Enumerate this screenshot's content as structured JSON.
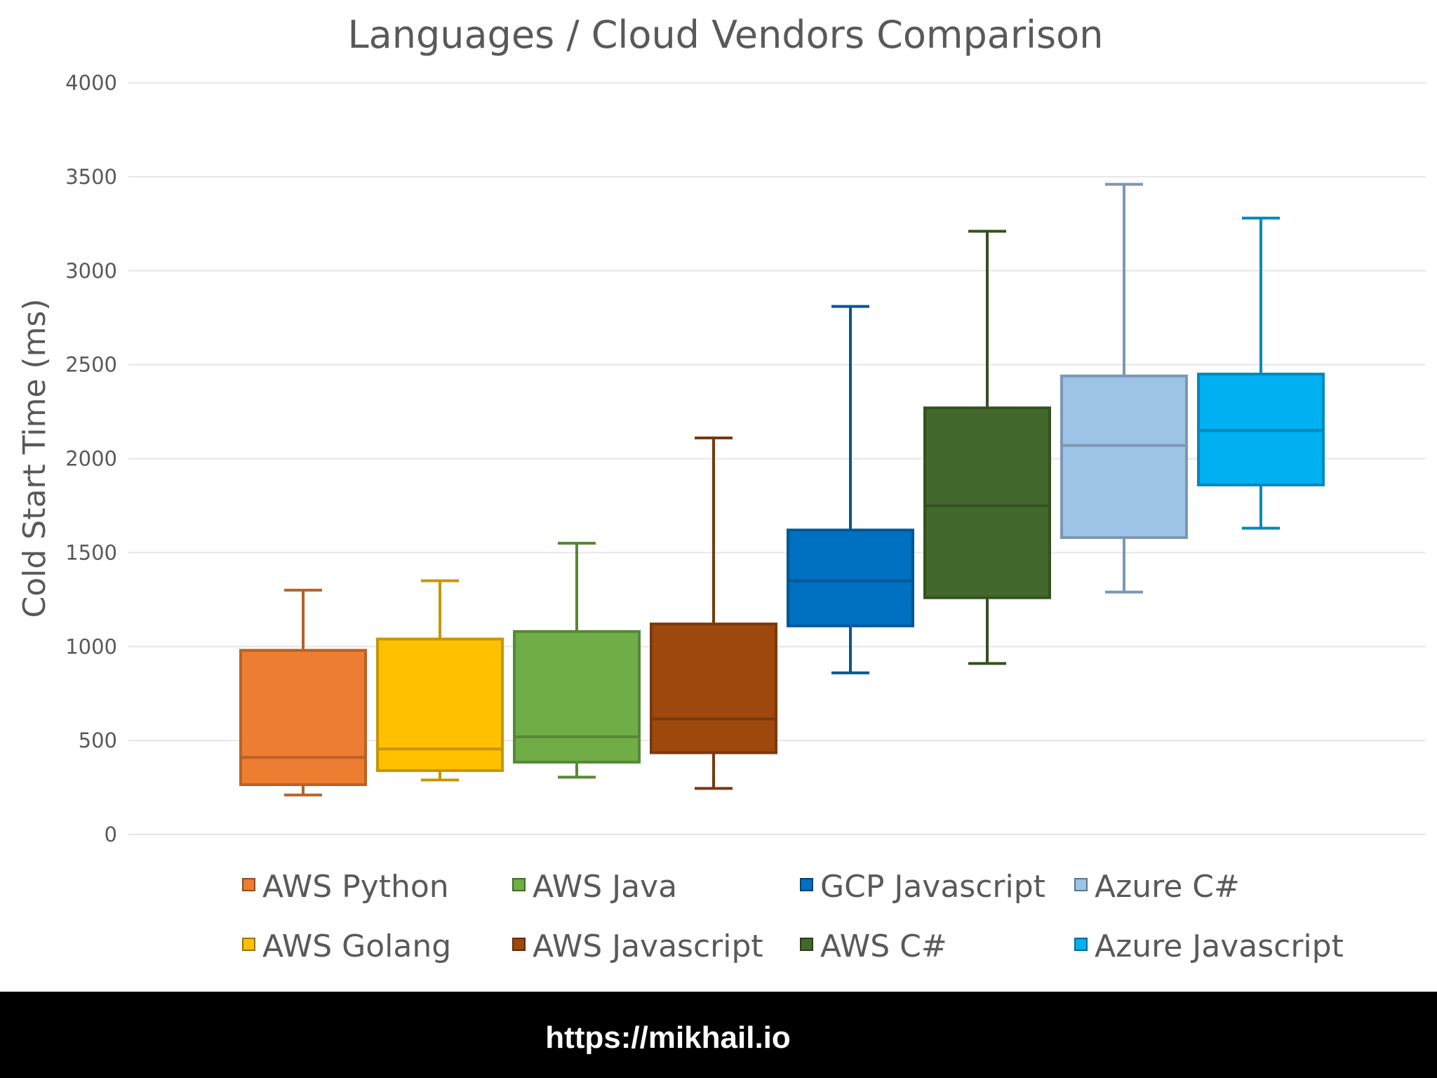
{
  "chart_data": {
    "type": "boxplot",
    "title": "Languages / Cloud Vendors Comparison",
    "ylabel": "Cold Start Time (ms)",
    "xlabel": "",
    "ylim": [
      0,
      4000
    ],
    "yticks": [
      0,
      500,
      1000,
      1500,
      2000,
      2500,
      3000,
      3500,
      4000
    ],
    "grid": true,
    "legend": {
      "position": "bottom",
      "columns": 4
    },
    "series": [
      {
        "name": "AWS Python",
        "color": "#ed7d31",
        "whisker_low": 210,
        "q1": 265,
        "median": 410,
        "q3": 980,
        "whisker_high": 1300
      },
      {
        "name": "AWS Golang",
        "color": "#ffc000",
        "whisker_low": 290,
        "q1": 340,
        "median": 455,
        "q3": 1040,
        "whisker_high": 1350
      },
      {
        "name": "AWS Java",
        "color": "#70ad47",
        "whisker_low": 305,
        "q1": 385,
        "median": 520,
        "q3": 1080,
        "whisker_high": 1550
      },
      {
        "name": "AWS Javascript",
        "color": "#9e480e",
        "whisker_low": 245,
        "q1": 435,
        "median": 615,
        "q3": 1120,
        "whisker_high": 2110
      },
      {
        "name": "GCP Javascript",
        "color": "#0070c0",
        "whisker_low": 860,
        "q1": 1110,
        "median": 1350,
        "q3": 1620,
        "whisker_high": 2810
      },
      {
        "name": "AWS C#",
        "color": "#43682b",
        "whisker_low": 910,
        "q1": 1260,
        "median": 1750,
        "q3": 2270,
        "whisker_high": 3210
      },
      {
        "name": "Azure C#",
        "color": "#9dc3e6",
        "whisker_low": 1290,
        "q1": 1580,
        "median": 2070,
        "q3": 2440,
        "whisker_high": 3460
      },
      {
        "name": "Azure Javascript",
        "color": "#00b0f0",
        "whisker_low": 1630,
        "q1": 1860,
        "median": 2150,
        "q3": 2450,
        "whisker_high": 3280
      }
    ],
    "legend_order": [
      "AWS Python",
      "AWS Java",
      "GCP Javascript",
      "Azure C#",
      "AWS Golang",
      "AWS Javascript",
      "AWS C#",
      "Azure Javascript"
    ]
  },
  "footer": {
    "url": "https://mikhail.io"
  },
  "colors": {
    "background": "#ffffff",
    "grid": "#e6e6e6",
    "text": "#595959",
    "footer_bg": "#000000",
    "footer_text": "#ffffff"
  }
}
